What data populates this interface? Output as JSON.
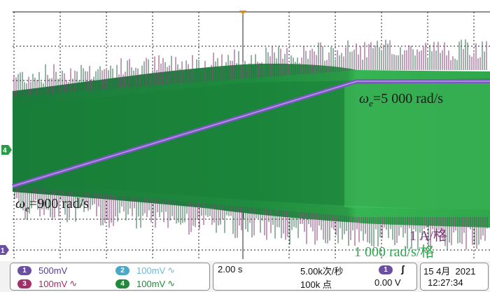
{
  "annotations": {
    "omega_top": "5 000 rad/s",
    "omega_bottom": "900 rad/s",
    "omega_symbol": "ω",
    "omega_sub": "e",
    "omega_eq": "=",
    "scale_current": "1 A/格",
    "scale_speed": "1 000 rad/s/格"
  },
  "markers": {
    "ch4": "4",
    "ch1": "1"
  },
  "channels": [
    {
      "num": "1",
      "value": "500mV",
      "color": "#6a4fa3",
      "text_color": "#5a3f93",
      "suffix": ""
    },
    {
      "num": "2",
      "value": "100mV",
      "color": "#4aa8c8",
      "text_color": "#6fb8d6",
      "suffix": "∿"
    },
    {
      "num": "3",
      "value": "100mV",
      "color": "#a0306a",
      "text_color": "#a0306a",
      "suffix": "∿"
    },
    {
      "num": "4",
      "value": "100mV",
      "color": "#1f8a3a",
      "text_color": "#1f8a3a",
      "suffix": "∿"
    }
  ],
  "timebase": "2.00 s",
  "sample_rate": "5.00k次/秒",
  "record_length": "100k 点",
  "trigger": {
    "channel": "1",
    "edge_symbol": "ʃ",
    "level": "0.00 V"
  },
  "datetime": {
    "date": "15 4月  2021",
    "time": "12:27:34"
  },
  "colors": {
    "speed_trace": "#6a4fa3",
    "current_envelope": "#1e8f3c",
    "spikes_magenta": "#8a3a7a",
    "annotation_purple": "#7a3a7a",
    "annotation_green": "#2aa84a"
  }
}
